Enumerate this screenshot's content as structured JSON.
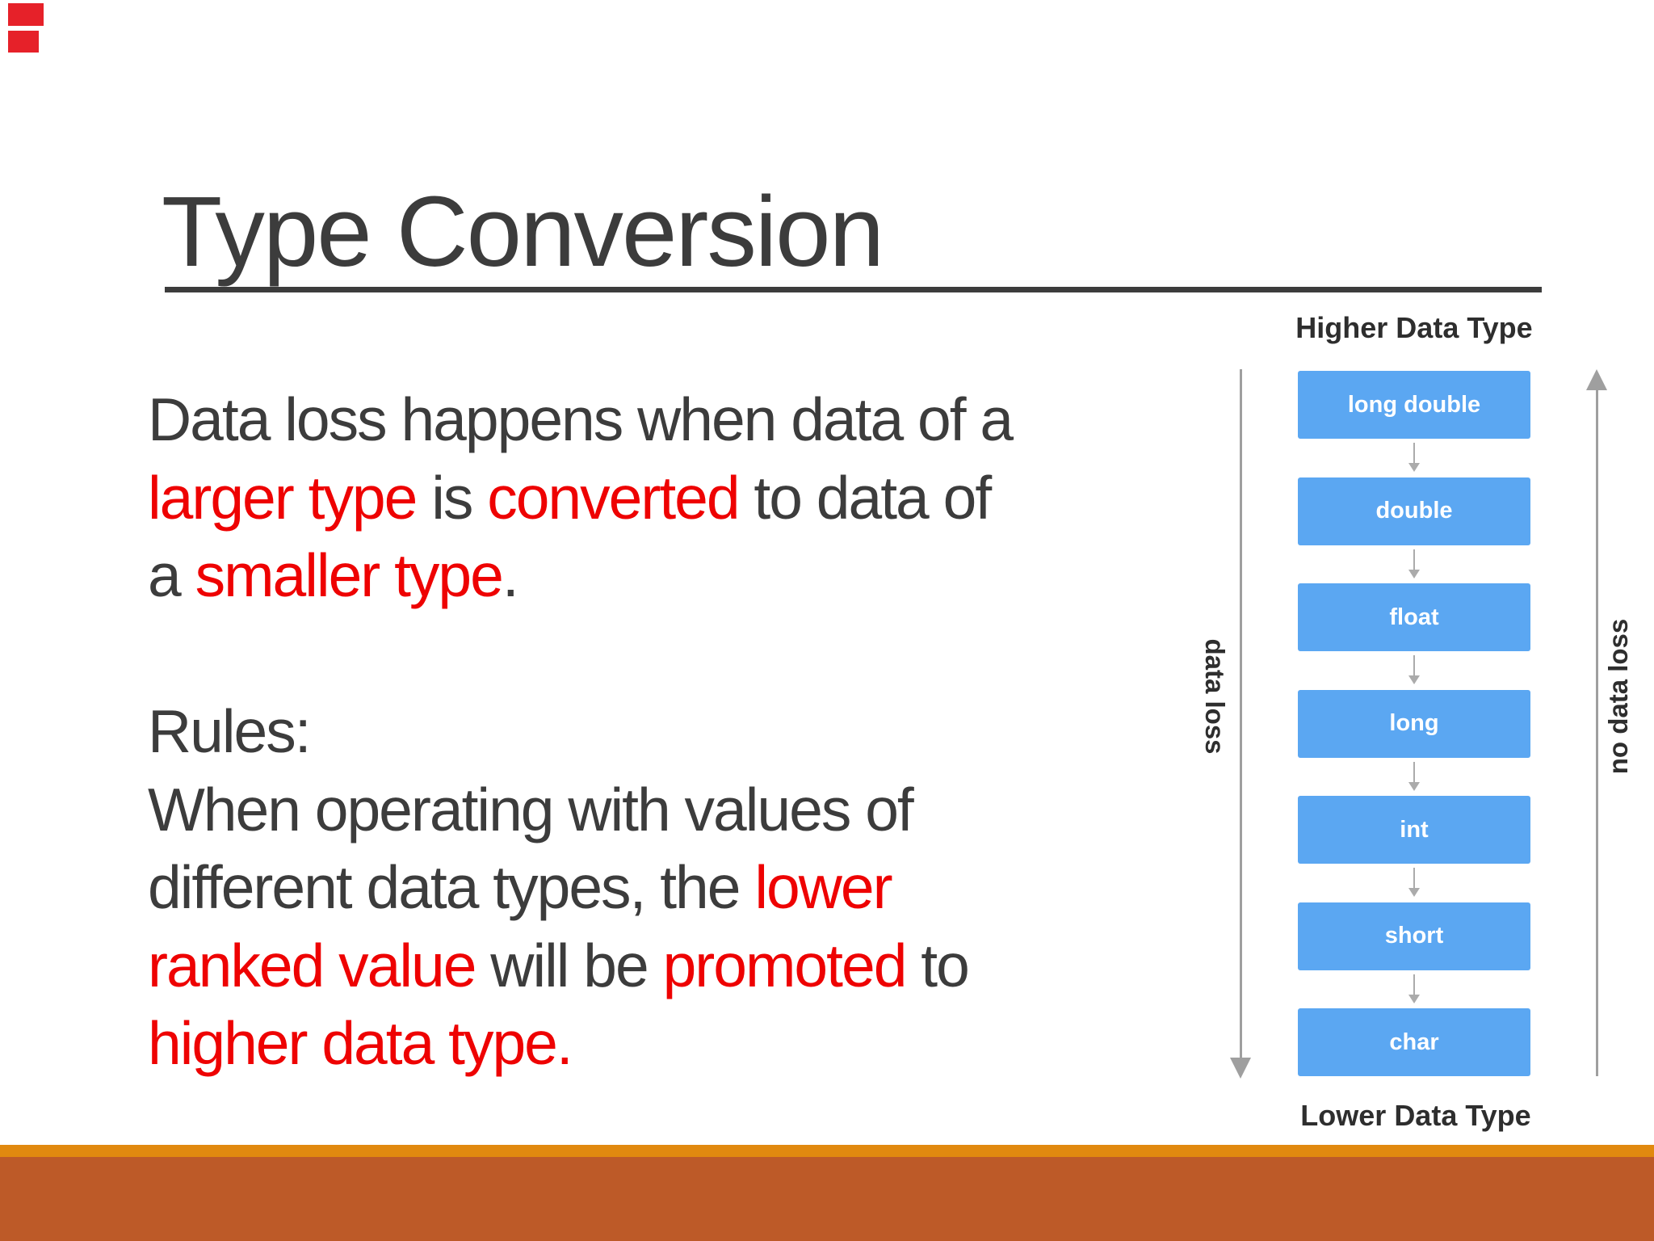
{
  "slide": {
    "title": "Type Conversion",
    "body_lines": [
      [
        {
          "t": "Data loss happens when data of a",
          "c": "dark"
        }
      ],
      [
        {
          "t": "larger type",
          "c": "red"
        },
        {
          "t": " is ",
          "c": "dark"
        },
        {
          "t": "converted",
          "c": "red"
        },
        {
          "t": " to data of",
          "c": "dark"
        }
      ],
      [
        {
          "t": "a ",
          "c": "dark"
        },
        {
          "t": "smaller type",
          "c": "red"
        },
        {
          "t": ".",
          "c": "dark"
        }
      ],
      [],
      [
        {
          "t": "Rules:",
          "c": "dark"
        }
      ],
      [
        {
          "t": "When operating with values of",
          "c": "dark"
        }
      ],
      [
        {
          "t": "different data types, the ",
          "c": "dark"
        },
        {
          "t": "lower",
          "c": "red"
        }
      ],
      [
        {
          "t": "ranked value",
          "c": "red"
        },
        {
          "t": " will be ",
          "c": "dark"
        },
        {
          "t": "promoted",
          "c": "red"
        },
        {
          "t": " to",
          "c": "dark"
        }
      ],
      [
        {
          "t": "higher data type.",
          "c": "red"
        }
      ]
    ]
  },
  "diagram": {
    "top_label": "Higher Data Type",
    "bottom_label": "Lower Data Type",
    "left_axis_label": "data loss",
    "right_axis_label": "no data loss",
    "type_boxes": [
      "long double",
      "double",
      "float",
      "long",
      "int",
      "short",
      "char"
    ]
  },
  "colors": {
    "ink": "#3c3c3c",
    "highlight_red": "#ee0202",
    "box_blue": "#5ba7f2",
    "box_text": "#ffffff",
    "axis_gray": "#9f9f9f",
    "arrow_gray": "#ababab",
    "label_dark": "#2e2e2e",
    "footer_gold": "#e1890f",
    "footer_rust": "#bd5a28",
    "corner_red": "#e62129"
  }
}
